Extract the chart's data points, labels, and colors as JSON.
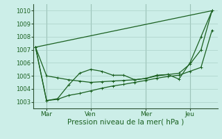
{
  "background_color": "#cceee8",
  "grid_color": "#aad0c8",
  "line_color": "#1a6020",
  "xlabel": "Pression niveau de la mer( hPa )",
  "ylim": [
    1002.5,
    1010.5
  ],
  "yticks": [
    1003,
    1004,
    1005,
    1006,
    1007,
    1008,
    1009,
    1010
  ],
  "xlim": [
    -0.2,
    16.5
  ],
  "xtick_positions": [
    1,
    5,
    10,
    14
  ],
  "xtick_labels": [
    "Mar",
    "Ven",
    "Mer",
    "Jeu"
  ],
  "vline_positions": [
    1,
    5,
    10,
    14
  ],
  "line1_x": [
    0,
    1,
    2,
    3,
    4,
    5,
    6,
    7,
    8,
    9,
    10,
    11,
    12,
    13,
    14,
    15,
    16
  ],
  "line1_y": [
    1007.2,
    1005.0,
    1004.85,
    1004.7,
    1004.6,
    1004.5,
    1004.55,
    1004.6,
    1004.65,
    1004.7,
    1004.8,
    1005.0,
    1005.1,
    1005.2,
    1005.9,
    1007.0,
    1010.0
  ],
  "line2_x": [
    0,
    1,
    2,
    3,
    4,
    5,
    6,
    7,
    8,
    9,
    10,
    11,
    12,
    13,
    14,
    15,
    16
  ],
  "line2_y": [
    1007.2,
    1003.1,
    1003.25,
    1004.3,
    1005.2,
    1005.5,
    1005.35,
    1005.05,
    1005.05,
    1004.7,
    1004.8,
    1005.05,
    1005.1,
    1004.75,
    1006.0,
    1008.0,
    1010.0
  ],
  "line3_x": [
    0,
    1,
    2,
    3,
    4,
    5,
    6,
    7,
    8,
    9,
    10,
    11,
    12,
    13,
    14,
    15,
    16
  ],
  "line3_y": [
    1007.2,
    1003.1,
    1003.2,
    1003.5,
    1003.65,
    1003.85,
    1004.05,
    1004.22,
    1004.35,
    1004.5,
    1004.65,
    1004.82,
    1004.95,
    1005.05,
    1005.35,
    1005.65,
    1008.5
  ],
  "line4_x": [
    0,
    16
  ],
  "line4_y": [
    1007.2,
    1010.0
  ]
}
